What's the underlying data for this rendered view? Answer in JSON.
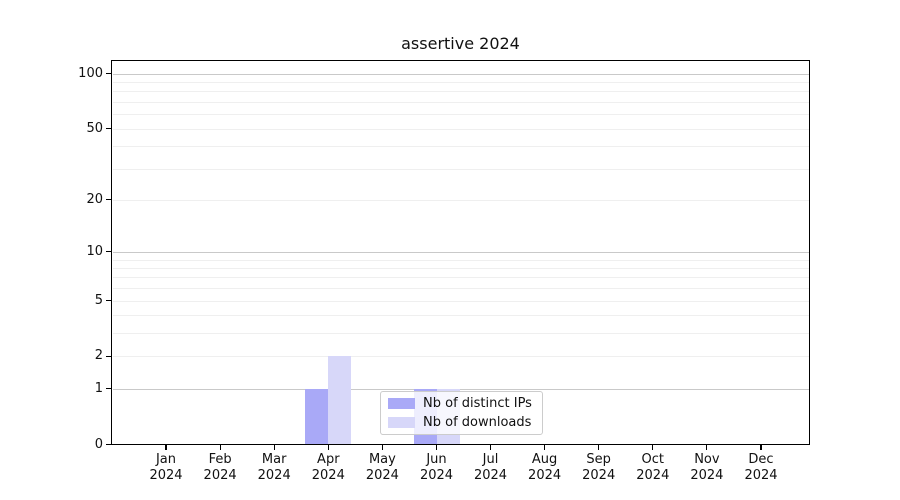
{
  "figure": {
    "background": "#ffffff"
  },
  "chart_data": {
    "type": "bar",
    "title": "assertive 2024",
    "categories": [
      "Jan 2024",
      "Feb 2024",
      "Mar 2024",
      "Apr 2024",
      "May 2024",
      "Jun 2024",
      "Jul 2024",
      "Aug 2024",
      "Sep 2024",
      "Oct 2024",
      "Nov 2024",
      "Dec 2024"
    ],
    "series": [
      {
        "name": "Nb of distinct IPs",
        "color": "#a9a9f7",
        "values": [
          0,
          0,
          0,
          1,
          0,
          1,
          0,
          0,
          0,
          0,
          0,
          0
        ]
      },
      {
        "name": "Nb of downloads",
        "color": "#d7d7f9",
        "values": [
          0,
          0,
          0,
          2,
          0,
          1,
          0,
          0,
          0,
          0,
          0,
          0
        ]
      }
    ],
    "xlabel": "",
    "ylabel": "",
    "yscale": "log1p",
    "ylim": [
      0,
      118
    ],
    "yticks": [
      0,
      1,
      2,
      5,
      10,
      20,
      50,
      100
    ],
    "gridlines_major": [
      1,
      10,
      100
    ],
    "gridlines_minor": [
      2,
      3,
      4,
      5,
      6,
      7,
      8,
      9,
      20,
      30,
      40,
      50,
      60,
      70,
      80,
      90
    ],
    "grid": true,
    "legend_position": "lower-center-inside"
  }
}
